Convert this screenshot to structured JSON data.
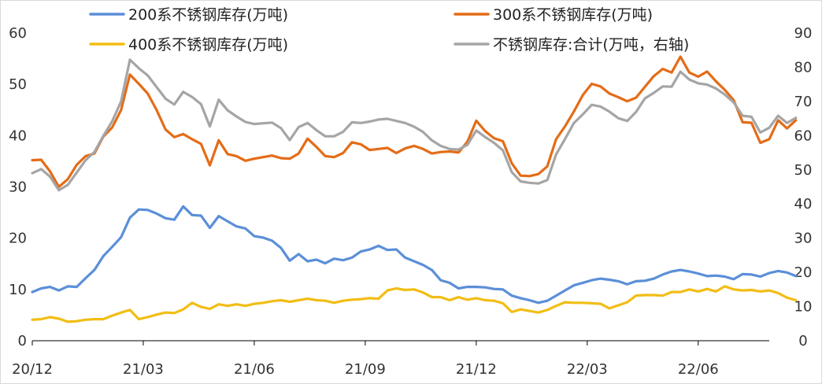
{
  "chart_data": {
    "type": "line",
    "legend_position": "top",
    "grid": false,
    "x_range": [
      0,
      83
    ],
    "x_ticks": [
      {
        "label": "20/12",
        "at": 0
      },
      {
        "label": "21/03",
        "at": 12.5
      },
      {
        "label": "21/06",
        "at": 25
      },
      {
        "label": "21/09",
        "at": 37.5
      },
      {
        "label": "21/12",
        "at": 50
      },
      {
        "label": "22/03",
        "at": 62.5
      },
      {
        "label": "22/06",
        "at": 75
      }
    ],
    "y_left": {
      "min": 0,
      "max": 60,
      "ticks": [
        0,
        10,
        20,
        30,
        40,
        50,
        60
      ]
    },
    "y_right": {
      "min": 0,
      "max": 90,
      "ticks": [
        0,
        10,
        20,
        30,
        40,
        50,
        60,
        70,
        80,
        90
      ]
    },
    "series": [
      {
        "name": "200系不锈钢库存(万吨)",
        "color": "#5B8FD8",
        "axis": "left",
        "legend_slot": 0,
        "values": [
          9.5,
          10.2,
          10.5,
          9.8,
          10.6,
          10.5,
          12.2,
          13.8,
          16.5,
          18.3,
          20.2,
          24.0,
          25.6,
          25.5,
          24.8,
          23.9,
          23.6,
          26.2,
          24.5,
          24.4,
          22.0,
          24.3,
          23.3,
          22.3,
          21.9,
          20.4,
          20.1,
          19.5,
          18.1,
          15.6,
          16.9,
          15.5,
          15.8,
          15.1,
          16.0,
          15.7,
          16.2,
          17.4,
          17.8,
          18.5,
          17.7,
          17.8,
          16.2,
          15.5,
          14.8,
          13.8,
          11.8,
          11.3,
          10.2,
          10.5,
          10.5,
          10.4,
          10.1,
          10.0,
          8.8,
          8.3,
          7.9,
          7.4,
          7.8,
          8.8,
          9.8,
          10.8,
          11.3,
          11.8,
          12.1,
          11.9,
          11.6,
          11.0,
          11.6,
          11.7,
          12.1,
          12.9,
          13.5,
          13.8,
          13.5,
          13.1,
          12.6,
          12.7,
          12.5,
          12.0,
          13.0,
          12.9,
          12.5,
          13.2,
          13.6,
          13.3,
          12.6
        ]
      },
      {
        "name": "300系不锈钢库存(万吨)",
        "color": "#E46C17",
        "axis": "left",
        "legend_slot": 1,
        "values": [
          35.2,
          35.3,
          33.0,
          30.0,
          31.5,
          34.3,
          36.0,
          36.5,
          39.8,
          41.6,
          45.0,
          51.9,
          50.1,
          48.2,
          45.0,
          41.2,
          39.7,
          40.3,
          39.3,
          38.4,
          34.2,
          39.1,
          36.4,
          36.0,
          35.1,
          35.5,
          35.8,
          36.1,
          35.6,
          35.5,
          36.5,
          39.4,
          37.8,
          36.0,
          35.8,
          36.6,
          38.7,
          38.3,
          37.2,
          37.4,
          37.6,
          36.6,
          37.5,
          38.0,
          37.4,
          36.5,
          36.8,
          36.9,
          36.7,
          38.8,
          42.9,
          40.9,
          39.5,
          38.9,
          34.6,
          32.2,
          32.1,
          32.5,
          34.0,
          39.3,
          41.8,
          44.7,
          47.9,
          50.1,
          49.6,
          48.2,
          47.5,
          46.7,
          47.4,
          49.5,
          51.6,
          53.0,
          52.3,
          55.4,
          52.3,
          51.5,
          52.5,
          50.6,
          48.9,
          46.9,
          42.6,
          42.5,
          38.6,
          39.3,
          43.0,
          41.4,
          43.0
        ]
      },
      {
        "name": "400系不锈钢库存(万吨)",
        "color": "#F2BD14",
        "axis": "left",
        "legend_slot": 2,
        "values": [
          4.1,
          4.2,
          4.6,
          4.3,
          3.7,
          3.8,
          4.1,
          4.2,
          4.2,
          4.9,
          5.5,
          6.0,
          4.2,
          4.6,
          5.1,
          5.5,
          5.4,
          6.1,
          7.4,
          6.6,
          6.2,
          7.1,
          6.8,
          7.1,
          6.8,
          7.2,
          7.4,
          7.7,
          7.9,
          7.6,
          7.9,
          8.2,
          7.9,
          7.8,
          7.4,
          7.8,
          8.0,
          8.1,
          8.3,
          8.2,
          9.8,
          10.2,
          9.9,
          10.0,
          9.4,
          8.5,
          8.5,
          7.9,
          8.5,
          8.0,
          8.3,
          7.9,
          7.8,
          7.3,
          5.6,
          6.1,
          5.8,
          5.5,
          6.0,
          6.8,
          7.5,
          7.4,
          7.4,
          7.3,
          7.2,
          6.3,
          6.9,
          7.5,
          8.8,
          8.9,
          8.9,
          8.8,
          9.5,
          9.5,
          10.0,
          9.6,
          10.1,
          9.6,
          10.6,
          10.0,
          9.8,
          9.9,
          9.6,
          9.8,
          9.3,
          8.4,
          7.9
        ]
      },
      {
        "name": "不锈钢库存:合计(万吨，右轴)",
        "color": "#A5A5A5",
        "axis": "right",
        "legend_slot": 3,
        "values": [
          49.0,
          50.2,
          48.0,
          44.0,
          45.6,
          49.2,
          52.8,
          55.2,
          59.9,
          64.2,
          70.0,
          82.2,
          79.7,
          77.6,
          74.2,
          70.8,
          69.1,
          72.8,
          71.3,
          69.2,
          62.7,
          70.5,
          67.4,
          65.6,
          64.0,
          63.4,
          63.6,
          63.8,
          62.2,
          58.7,
          62.5,
          63.7,
          61.6,
          59.8,
          59.8,
          61.1,
          63.9,
          63.7,
          64.1,
          64.7,
          64.9,
          64.3,
          63.7,
          62.6,
          61.1,
          58.6,
          57.0,
          56.1,
          55.9,
          57.3,
          61.5,
          59.6,
          57.9,
          55.7,
          49.3,
          46.6,
          46.2,
          46.0,
          47.0,
          54.5,
          59.0,
          63.7,
          66.2,
          69.0,
          68.5,
          67.0,
          65.1,
          64.3,
          66.9,
          70.9,
          72.5,
          74.4,
          74.3,
          78.7,
          76.4,
          75.3,
          74.9,
          73.8,
          72.0,
          69.7,
          65.8,
          65.5,
          60.9,
          62.3,
          65.8,
          63.7,
          65.2
        ]
      }
    ]
  }
}
